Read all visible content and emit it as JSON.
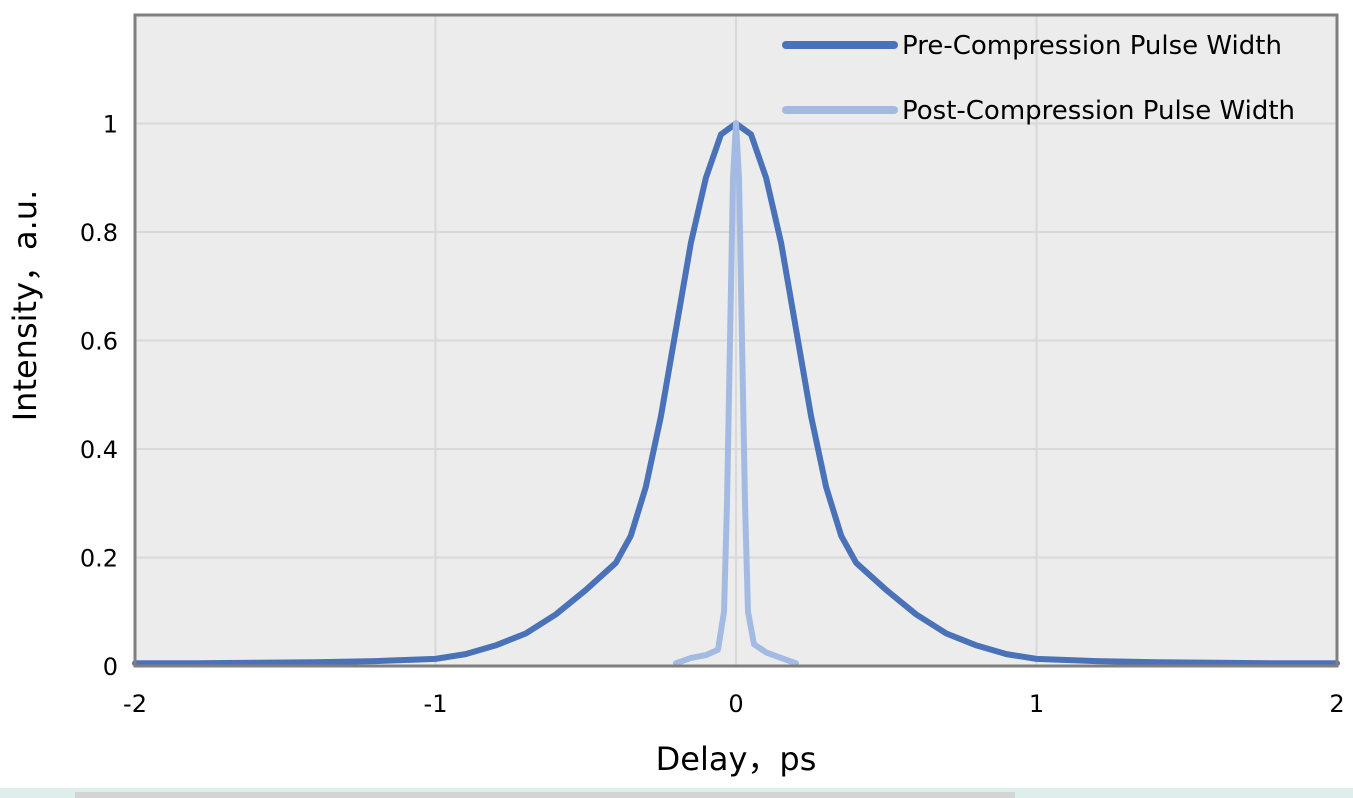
{
  "chart_data": {
    "type": "line",
    "xlabel": "Delay，ps",
    "ylabel": "Intensity，a.u.",
    "xlim": [
      -2,
      2
    ],
    "ylim": [
      0,
      1.2
    ],
    "x_ticks": [
      "-2",
      "-1",
      "0",
      "1",
      "2"
    ],
    "y_ticks": [
      "0",
      "0.2",
      "0.4",
      "0.6",
      "0.8",
      "1"
    ],
    "grid": true,
    "legend_position": "top-right",
    "series": [
      {
        "name": "Pre-Compression Pulse Width",
        "color": "#4a72b8",
        "x": [
          -2.0,
          -1.8,
          -1.6,
          -1.4,
          -1.2,
          -1.0,
          -0.9,
          -0.8,
          -0.7,
          -0.6,
          -0.5,
          -0.4,
          -0.35,
          -0.3,
          -0.25,
          -0.2,
          -0.15,
          -0.1,
          -0.05,
          0.0,
          0.05,
          0.1,
          0.15,
          0.2,
          0.25,
          0.3,
          0.35,
          0.4,
          0.5,
          0.6,
          0.7,
          0.8,
          0.9,
          1.0,
          1.2,
          1.4,
          1.6,
          1.8,
          2.0
        ],
        "y": [
          0.005,
          0.005,
          0.006,
          0.007,
          0.009,
          0.013,
          0.022,
          0.038,
          0.06,
          0.095,
          0.14,
          0.19,
          0.24,
          0.33,
          0.46,
          0.62,
          0.78,
          0.9,
          0.98,
          1.0,
          0.98,
          0.9,
          0.78,
          0.62,
          0.46,
          0.33,
          0.24,
          0.19,
          0.14,
          0.095,
          0.06,
          0.038,
          0.022,
          0.013,
          0.009,
          0.007,
          0.006,
          0.005,
          0.005
        ]
      },
      {
        "name": "Post-Compression Pulse Width",
        "color": "#a3bbe2",
        "x": [
          -0.2,
          -0.15,
          -0.1,
          -0.06,
          -0.04,
          -0.03,
          -0.02,
          -0.01,
          0.0,
          0.01,
          0.02,
          0.03,
          0.04,
          0.06,
          0.1,
          0.15,
          0.2
        ],
        "y": [
          0.005,
          0.015,
          0.02,
          0.03,
          0.1,
          0.3,
          0.6,
          0.9,
          1.0,
          0.9,
          0.6,
          0.3,
          0.1,
          0.04,
          0.025,
          0.015,
          0.005
        ]
      }
    ]
  }
}
